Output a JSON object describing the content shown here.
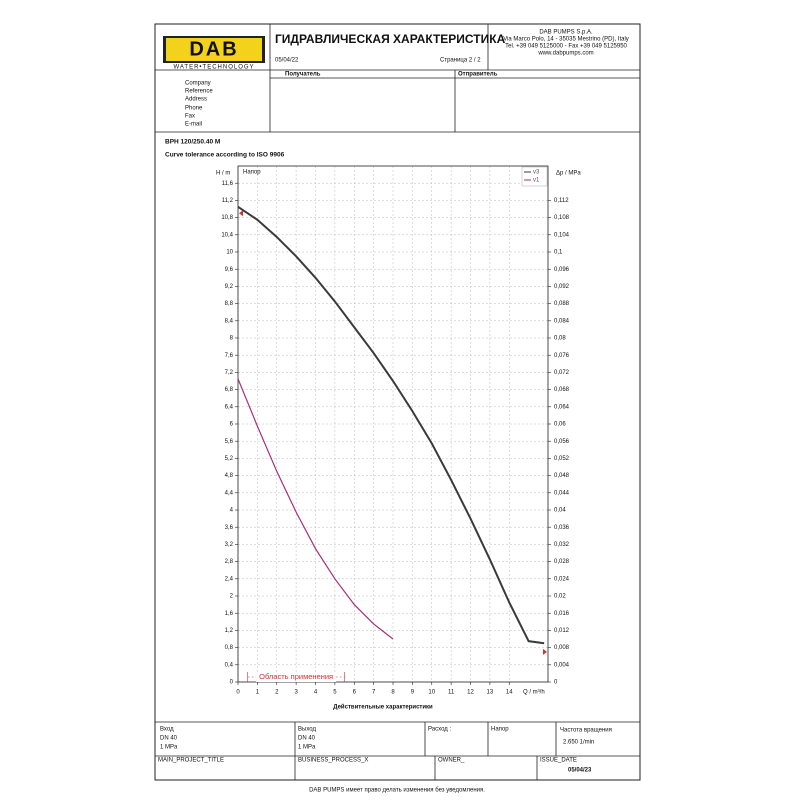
{
  "header": {
    "logo": "DAB",
    "logo_tagline": "WATER•TECHNOLOGY",
    "title": "ГИДРАВЛИЧЕСКАЯ ХАРАКТЕРИСТИКА",
    "date": "05/04/22",
    "page": "Страница 2 / 2",
    "company": [
      "DAB PUMPS S.p.A.",
      "Via Marco Polo, 14 - 35035 Mestrino (PD), Italy",
      "Tel. +39 049 5125000 - Fax +39 049 5125950",
      "www.dabpumps.com"
    ]
  },
  "parties": {
    "recipient": "Получатель",
    "sender": "Отправитель",
    "fields": [
      "Company",
      "Reference",
      "Address",
      "Phone",
      "Fax",
      "E-mail"
    ]
  },
  "product": {
    "model": "BPH 120/250.40 M",
    "tolerance": "Curve tolerance according to ISO 9906"
  },
  "chart_data": {
    "type": "line",
    "ylabel": "H / m",
    "y2label": "Δp / MPa",
    "xlabel": "Q / m³/h",
    "title": "Действительные характеристики",
    "curve_label": "Напор",
    "x": [
      0,
      1,
      2,
      3,
      4,
      5,
      6,
      7,
      8,
      9,
      10,
      11,
      12,
      13,
      14,
      15,
      15.8
    ],
    "series": [
      {
        "name": "v3",
        "color": "#3a3a3a",
        "values": [
          11.05,
          10.75,
          10.35,
          9.9,
          9.4,
          8.85,
          8.25,
          7.65,
          7.0,
          6.3,
          5.55,
          4.7,
          3.8,
          2.85,
          1.85,
          0.95,
          0.9
        ]
      },
      {
        "name": "v1",
        "color": "#a3307c",
        "values": [
          7.05,
          5.95,
          4.9,
          3.95,
          3.1,
          2.4,
          1.8,
          1.35,
          1.0,
          null,
          null,
          null,
          null,
          null,
          null,
          null,
          null
        ]
      }
    ],
    "xlim": [
      0,
      16
    ],
    "xticks": [
      0,
      1,
      2,
      3,
      4,
      5,
      6,
      7,
      8,
      9,
      10,
      11,
      12,
      13,
      14
    ],
    "ylim": [
      0,
      12
    ],
    "yticks": [
      0,
      {
        "value": 0.4,
        "label": "0,4"
      },
      {
        "value": 0.8,
        "label": "0,8"
      },
      {
        "value": 1.2,
        "label": "1,2"
      },
      {
        "value": 1.6,
        "label": "1,6"
      },
      2,
      {
        "value": 2.4,
        "label": "2,4"
      },
      {
        "value": 2.8,
        "label": "2,8"
      },
      {
        "value": 3.2,
        "label": "3,2"
      },
      {
        "value": 3.6,
        "label": "3,6"
      },
      4,
      {
        "value": 4.4,
        "label": "4,4"
      },
      {
        "value": 4.8,
        "label": "4,8"
      },
      {
        "value": 5.2,
        "label": "5,2"
      },
      {
        "value": 5.6,
        "label": "5,6"
      },
      6,
      {
        "value": 6.4,
        "label": "6,4"
      },
      {
        "value": 6.8,
        "label": "6,8"
      },
      {
        "value": 7.2,
        "label": "7,2"
      },
      {
        "value": 7.6,
        "label": "7,6"
      },
      8,
      {
        "value": 8.4,
        "label": "8,4"
      },
      {
        "value": 8.8,
        "label": "8,8"
      },
      {
        "value": 9.2,
        "label": "9,2"
      },
      {
        "value": 9.6,
        "label": "9,6"
      },
      10,
      {
        "value": 10.4,
        "label": "10,4"
      },
      {
        "value": 10.8,
        "label": "10,8"
      },
      {
        "value": 11.2,
        "label": "11,2"
      },
      {
        "value": 11.6,
        "label": "11,6"
      }
    ],
    "y2lim": [
      0,
      0.12
    ],
    "y2ticks": [
      0,
      {
        "value": 0.004,
        "label": "0,004"
      },
      {
        "value": 0.008,
        "label": "0,008"
      },
      {
        "value": 0.012,
        "label": "0,012"
      },
      {
        "value": 0.016,
        "label": "0,016"
      },
      {
        "value": 0.02,
        "label": "0,02"
      },
      {
        "value": 0.024,
        "label": "0,024"
      },
      {
        "value": 0.028,
        "label": "0,028"
      },
      {
        "value": 0.032,
        "label": "0,032"
      },
      {
        "value": 0.036,
        "label": "0,036"
      },
      {
        "value": 0.04,
        "label": "0,04"
      },
      {
        "value": 0.044,
        "label": "0,044"
      },
      {
        "value": 0.048,
        "label": "0,048"
      },
      {
        "value": 0.052,
        "label": "0,052"
      },
      {
        "value": 0.056,
        "label": "0,056"
      },
      {
        "value": 0.06,
        "label": "0,06"
      },
      {
        "value": 0.064,
        "label": "0,064"
      },
      {
        "value": 0.068,
        "label": "0,068"
      },
      {
        "value": 0.072,
        "label": "0,072"
      },
      {
        "value": 0.076,
        "label": "0,076"
      },
      {
        "value": 0.08,
        "label": "0,08"
      },
      {
        "value": 0.084,
        "label": "0,084"
      },
      {
        "value": 0.088,
        "label": "0,088"
      },
      {
        "value": 0.092,
        "label": "0,092"
      },
      {
        "value": 0.096,
        "label": "0,096"
      },
      {
        "value": 0.1,
        "label": "0,1"
      },
      {
        "value": 0.104,
        "label": "0,104"
      },
      {
        "value": 0.108,
        "label": "0,108"
      },
      {
        "value": 0.112,
        "label": "0,112"
      }
    ],
    "grid": true,
    "annotation": {
      "text": "Область применения",
      "x_range": [
        0.5,
        5.5
      ]
    },
    "end_markers": {
      "y_left": 10.9,
      "y_right": 0.7
    }
  },
  "footer": {
    "inlet": [
      "Вход",
      "DN 40",
      "1 MPa"
    ],
    "outlet": [
      "Выход",
      "DN 40",
      "1 MPa"
    ],
    "flow": "Расход :",
    "head": "Напор",
    "speed": [
      "Частота вращения",
      "2.650 1/min"
    ],
    "project": "MAIN_PROJECT_TITLE",
    "process": "BUSINESS_PROCESS_X",
    "owner": "OWNER_",
    "issue_date_label": "ISSUE_DATE",
    "issue_date": "05/04/23",
    "disclaimer": "DAB PUMPS имеет право делать изменения без уведомления."
  }
}
